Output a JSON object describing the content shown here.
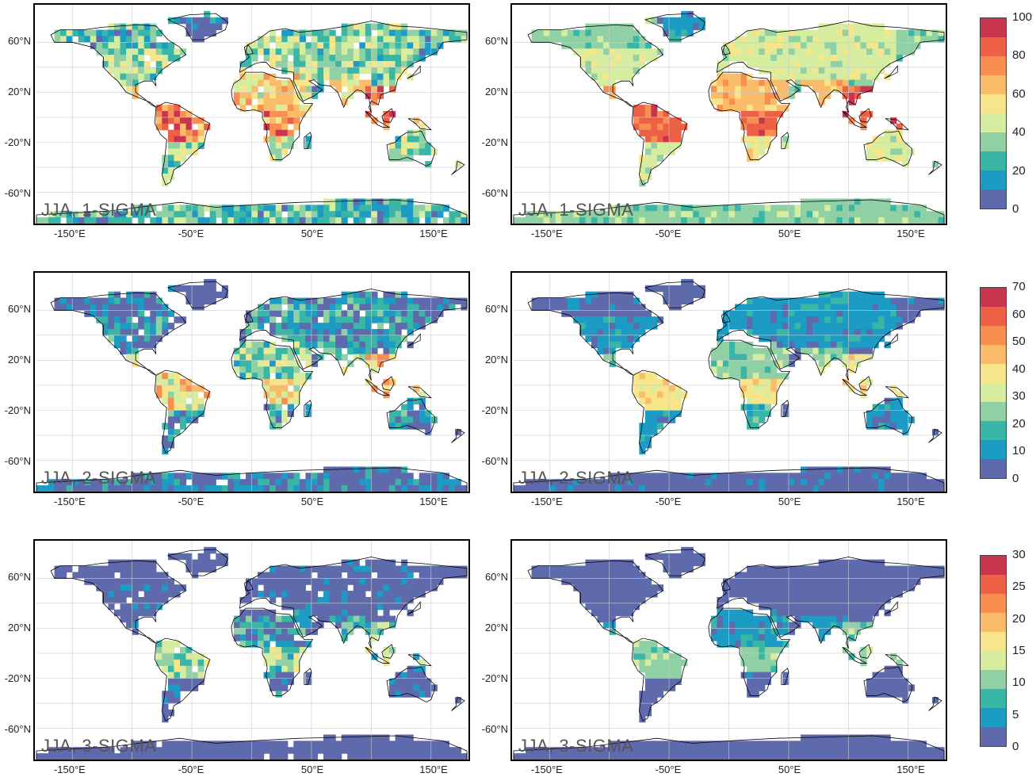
{
  "panels": [
    {
      "label": "JJA, 1-SIGMA",
      "column": "left",
      "row": 1
    },
    {
      "label": "JJA, 1-SIGMA",
      "column": "right",
      "row": 1
    },
    {
      "label": "JJA, 2-SIGMA",
      "column": "left",
      "row": 2
    },
    {
      "label": "JJA, 2-SIGMA",
      "column": "right",
      "row": 2
    },
    {
      "label": "JJA, 3-SIGMA",
      "column": "left",
      "row": 3
    },
    {
      "label": "JJA, 3-SIGMA",
      "column": "right",
      "row": 3
    }
  ],
  "lat_ticks": [
    "60°N",
    "20°N",
    "-20°N",
    "-60°N"
  ],
  "lon_ticks": [
    "-150°E",
    "-50°E",
    "50°E",
    "150°E"
  ],
  "colorbars": [
    {
      "row": 1,
      "ticks": [
        "100",
        "80",
        "60",
        "40",
        "20",
        "0"
      ]
    },
    {
      "row": 2,
      "ticks": [
        "70",
        "60",
        "50",
        "40",
        "30",
        "20",
        "10",
        "0"
      ]
    },
    {
      "row": 3,
      "ticks": [
        "30",
        "25",
        "20",
        "15",
        "10",
        "5",
        "0"
      ]
    }
  ],
  "colors": {
    "scale": [
      "#5e6aab",
      "#1c9bc4",
      "#39b6a6",
      "#8fd0a5",
      "#d6ec9f",
      "#f7e58b",
      "#fbbc6a",
      "#f88f50",
      "#ee6045",
      "#c9344e"
    ],
    "ocean": "#ffffff",
    "border": "#000000"
  }
}
